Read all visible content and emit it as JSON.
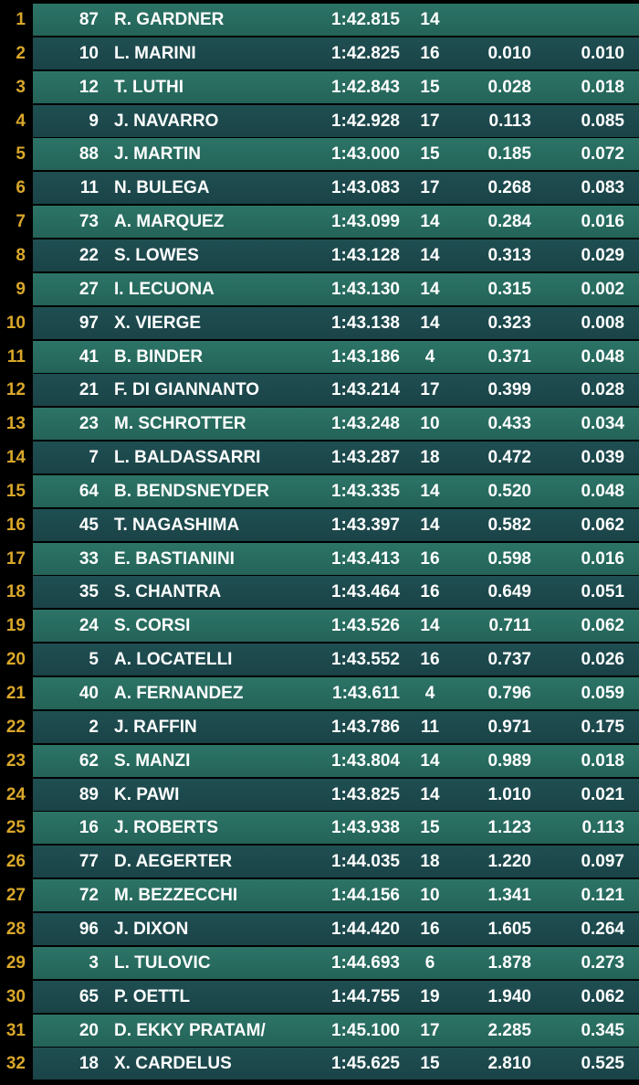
{
  "table": {
    "rows": [
      [
        1,
        87,
        "R. GARDNER",
        "1:42.815",
        14
      ],
      [
        2,
        10,
        "L. MARINI",
        "1:42.825",
        16,
        "0.010",
        "0.010"
      ],
      [
        3,
        12,
        "T. LUTHI",
        "1:42.843",
        15,
        "0.028",
        "0.018"
      ],
      [
        4,
        9,
        "J. NAVARRO",
        "1:42.928",
        17,
        "0.113",
        "0.085"
      ],
      [
        5,
        88,
        "J. MARTIN",
        "1:43.000",
        15,
        "0.185",
        "0.072"
      ],
      [
        6,
        11,
        "N. BULEGA",
        "1:43.083",
        17,
        "0.268",
        "0.083"
      ],
      [
        7,
        73,
        "A. MARQUEZ",
        "1:43.099",
        14,
        "0.284",
        "0.016"
      ],
      [
        8,
        22,
        "S. LOWES",
        "1:43.128",
        14,
        "0.313",
        "0.029"
      ],
      [
        9,
        27,
        "I. LECUONA",
        "1:43.130",
        14,
        "0.315",
        "0.002"
      ],
      [
        10,
        97,
        "X. VIERGE",
        "1:43.138",
        14,
        "0.323",
        "0.008"
      ],
      [
        11,
        41,
        "B. BINDER",
        "1:43.186",
        4,
        "0.371",
        "0.048"
      ],
      [
        12,
        21,
        "F. DI GIANNANTO",
        "1:43.214",
        17,
        "0.399",
        "0.028"
      ],
      [
        13,
        23,
        "M. SCHROTTER",
        "1:43.248",
        10,
        "0.433",
        "0.034"
      ],
      [
        14,
        7,
        "L. BALDASSARRI",
        "1:43.287",
        18,
        "0.472",
        "0.039"
      ],
      [
        15,
        64,
        "B. BENDSNEYDER",
        "1:43.335",
        14,
        "0.520",
        "0.048"
      ],
      [
        16,
        45,
        "T. NAGASHIMA",
        "1:43.397",
        14,
        "0.582",
        "0.062"
      ],
      [
        17,
        33,
        "E. BASTIANINI",
        "1:43.413",
        16,
        "0.598",
        "0.016"
      ],
      [
        18,
        35,
        "S. CHANTRA",
        "1:43.464",
        16,
        "0.649",
        "0.051"
      ],
      [
        19,
        24,
        "S. CORSI",
        "1:43.526",
        14,
        "0.711",
        "0.062"
      ],
      [
        20,
        5,
        "A. LOCATELLI",
        "1:43.552",
        16,
        "0.737",
        "0.026"
      ],
      [
        21,
        40,
        "A. FERNANDEZ",
        "1:43.611",
        4,
        "0.796",
        "0.059"
      ],
      [
        22,
        2,
        "J. RAFFIN",
        "1:43.786",
        11,
        "0.971",
        "0.175"
      ],
      [
        23,
        62,
        "S. MANZI",
        "1:43.804",
        14,
        "0.989",
        "0.018"
      ],
      [
        24,
        89,
        "K. PAWI",
        "1:43.825",
        14,
        "1.010",
        "0.021"
      ],
      [
        25,
        16,
        "J. ROBERTS",
        "1:43.938",
        15,
        "1.123",
        "0.113"
      ],
      [
        26,
        77,
        "D. AEGERTER",
        "1:44.035",
        18,
        "1.220",
        "0.097"
      ],
      [
        27,
        72,
        "M. BEZZECCHI",
        "1:44.156",
        10,
        "1.341",
        "0.121"
      ],
      [
        28,
        96,
        "J. DIXON",
        "1:44.420",
        16,
        "1.605",
        "0.264"
      ],
      [
        29,
        3,
        "L. TULOVIC",
        "1:44.693",
        6,
        "1.878",
        "0.273"
      ],
      [
        30,
        65,
        "P. OETTL",
        "1:44.755",
        19,
        "1.940",
        "0.062"
      ],
      [
        31,
        20,
        "D. EKKY PRATAM/",
        "1:45.100",
        17,
        "2.285",
        "0.345"
      ],
      [
        32,
        18,
        "X. CARDELUS",
        "1:45.625",
        15,
        "2.810",
        "0.525"
      ]
    ]
  }
}
